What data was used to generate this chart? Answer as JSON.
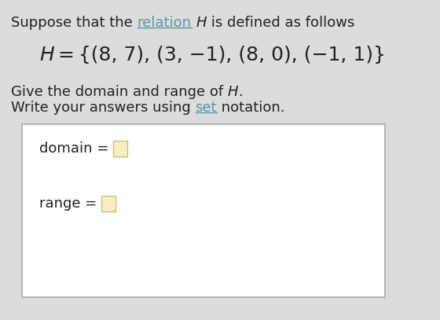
{
  "bg_color": "#dcdcdc",
  "box_bg": "#ffffff",
  "box_border": "#aaaaaa",
  "input_box_color": "#f5f0c0",
  "input_box_border": "#ccbb88",
  "text_color": "#222222",
  "link_color": "#5599aa",
  "font_size_main": 13,
  "font_size_h": 18,
  "line1_parts": [
    {
      "text": "Suppose that the ",
      "color": "#222222",
      "italic": false,
      "underline": false
    },
    {
      "text": "relation",
      "color": "#5599aa",
      "italic": false,
      "underline": true
    },
    {
      "text": " ",
      "color": "#222222",
      "italic": false,
      "underline": false
    },
    {
      "text": "H",
      "color": "#222222",
      "italic": true,
      "underline": false
    },
    {
      "text": " is defined as follows",
      "color": "#222222",
      "italic": false,
      "underline": false
    }
  ],
  "line2_parts": [
    {
      "text": "H",
      "color": "#222222",
      "italic": true,
      "underline": false
    },
    {
      "text": " = {(8, 7), (3, −1), (8, 0), (−1, 1)}",
      "color": "#222222",
      "italic": false,
      "underline": false
    }
  ],
  "line3_parts": [
    {
      "text": "Give the domain and range of ",
      "color": "#222222",
      "italic": false,
      "underline": false
    },
    {
      "text": "H",
      "color": "#222222",
      "italic": true,
      "underline": false
    },
    {
      "text": ".",
      "color": "#222222",
      "italic": false,
      "underline": false
    }
  ],
  "line4_parts": [
    {
      "text": "Write your answers using ",
      "color": "#222222",
      "italic": false,
      "underline": false
    },
    {
      "text": "set",
      "color": "#5599aa",
      "italic": false,
      "underline": true
    },
    {
      "text": " notation.",
      "color": "#222222",
      "italic": false,
      "underline": false
    }
  ],
  "domain_label": "domain = ",
  "range_label": "range = "
}
